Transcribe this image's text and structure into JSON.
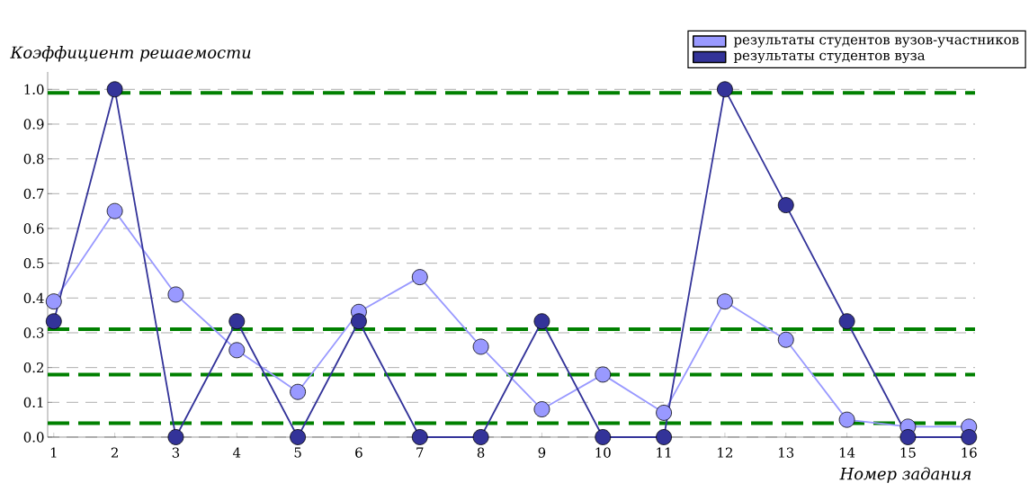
{
  "chart_data": {
    "type": "line",
    "xlabel": "Номер задания",
    "ylabel": "Коэффициент решаемости",
    "x": [
      1,
      2,
      3,
      4,
      5,
      6,
      7,
      8,
      9,
      10,
      11,
      12,
      13,
      14,
      15,
      16
    ],
    "series": [
      {
        "name": "результаты студентов вузов-участников",
        "color": "#9999ff",
        "values": [
          0.39,
          0.65,
          0.41,
          0.25,
          0.13,
          0.36,
          0.46,
          0.26,
          0.08,
          0.18,
          0.07,
          0.39,
          0.28,
          0.05,
          0.03,
          0.03
        ]
      },
      {
        "name": "результаты студентов вуза",
        "color": "#333399",
        "values": [
          0.333,
          1.0,
          0,
          0.333,
          0,
          0.333,
          0,
          0,
          0.333,
          0,
          0,
          1.0,
          0.667,
          0.333,
          0,
          0
        ]
      }
    ],
    "xlim": [
      0.9,
      16.1
    ],
    "ylim": [
      0,
      1.05
    ],
    "xticks": [
      1,
      2,
      3,
      4,
      5,
      6,
      7,
      8,
      9,
      10,
      11,
      12,
      13,
      14,
      15,
      16
    ],
    "yticks": [
      {
        "value": 0,
        "label": "0.0"
      },
      0.1,
      0.2,
      0.3,
      0.4,
      0.5,
      0.6,
      0.7,
      0.8,
      0.9,
      {
        "value": 1,
        "label": "1.0"
      }
    ],
    "ref_lines": [
      {
        "axis": "y",
        "value": 0.99,
        "color": "#008000",
        "line_style": "dashed"
      },
      {
        "axis": "y",
        "value": 0.31,
        "color": "#008000",
        "line_style": "dashed"
      },
      {
        "axis": "y",
        "value": 0.18,
        "color": "#008000",
        "line_style": "dashed"
      },
      {
        "axis": "y",
        "value": 0.04,
        "color": "#008000",
        "line_style": "dashed"
      }
    ],
    "grid": "y",
    "legend": "top right",
    "marker": "circle",
    "line_style": "solid"
  }
}
